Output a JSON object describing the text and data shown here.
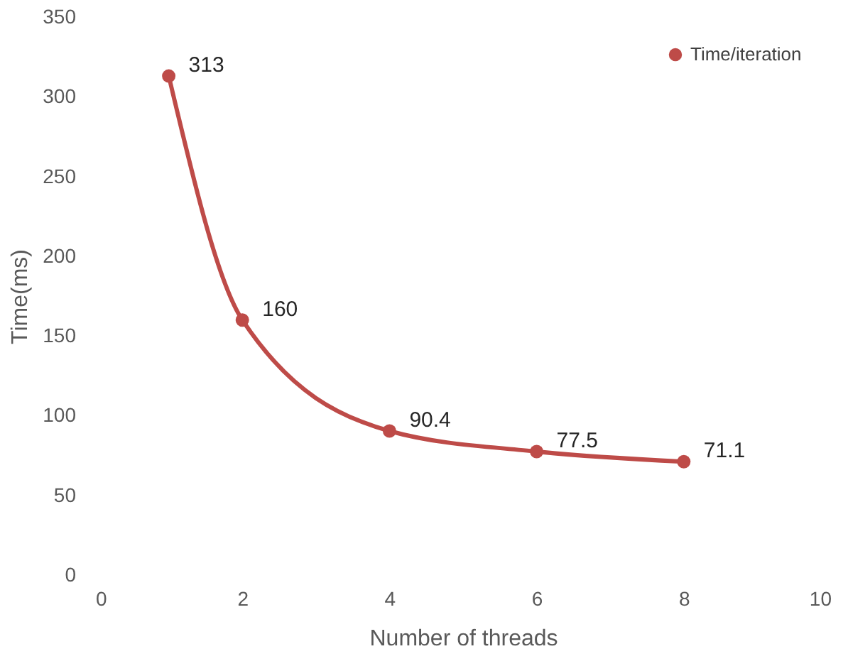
{
  "chart_data": {
    "type": "line",
    "xlabel": "Number of threads",
    "ylabel": "Time(ms)",
    "x": [
      1,
      2,
      4,
      6,
      8
    ],
    "series": [
      {
        "name": "Time/iteration",
        "color": "#be4b48",
        "values": [
          313,
          160,
          90.4,
          77.5,
          71.1
        ]
      }
    ],
    "xlim": [
      0,
      10
    ],
    "xticks": [
      0,
      2,
      4,
      6,
      8,
      10
    ],
    "ylim": [
      0,
      350
    ],
    "yticks": [
      0,
      50,
      100,
      150,
      200,
      250,
      300,
      350
    ],
    "data_labels": true,
    "legend": "top right",
    "marker": "circle",
    "line_style": "solid",
    "grid": false
  }
}
